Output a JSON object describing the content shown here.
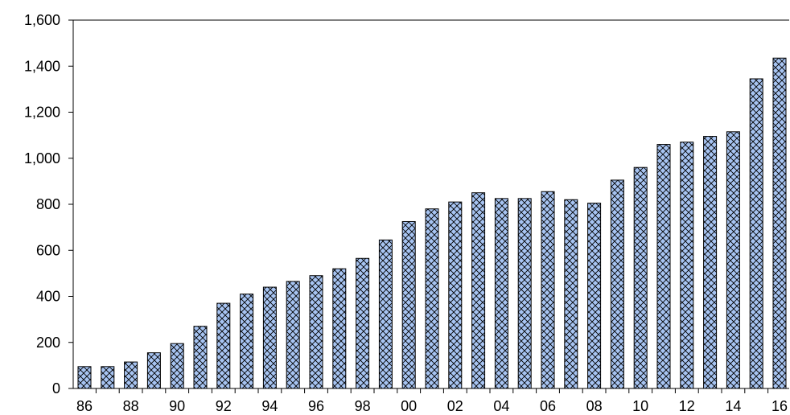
{
  "chart_data": {
    "type": "bar",
    "title": "",
    "xlabel": "",
    "ylabel": "",
    "categories": [
      "86",
      "87",
      "88",
      "89",
      "90",
      "91",
      "92",
      "93",
      "94",
      "95",
      "96",
      "97",
      "98",
      "99",
      "00",
      "01",
      "02",
      "03",
      "04",
      "05",
      "06",
      "07",
      "08",
      "09",
      "10",
      "11",
      "12",
      "13",
      "14",
      "15",
      "16"
    ],
    "x_tick_labels": [
      "86",
      "88",
      "90",
      "92",
      "94",
      "96",
      "98",
      "00",
      "02",
      "04",
      "06",
      "08",
      "10",
      "12",
      "14",
      "16"
    ],
    "values": [
      95,
      95,
      115,
      155,
      195,
      270,
      370,
      410,
      440,
      465,
      490,
      520,
      565,
      645,
      725,
      780,
      810,
      850,
      825,
      825,
      855,
      820,
      805,
      905,
      960,
      1060,
      1070,
      1095,
      1115,
      1345,
      1435
    ],
    "ylim": [
      0,
      1600
    ],
    "y_ticks": [
      0,
      200,
      400,
      600,
      800,
      1000,
      1200,
      1400,
      1600
    ],
    "y_tick_labels": [
      "0",
      "200",
      "400",
      "600",
      "800",
      "1,000",
      "1,200",
      "1,400",
      "1,600"
    ],
    "grid": false,
    "legend": "none",
    "bar_fill": "hatched crosshatch",
    "colors": {
      "bar_fill": "#a7c4f2",
      "bar_hatch": "#000000",
      "bar_edge": "#000000",
      "axis": "#000000"
    }
  }
}
